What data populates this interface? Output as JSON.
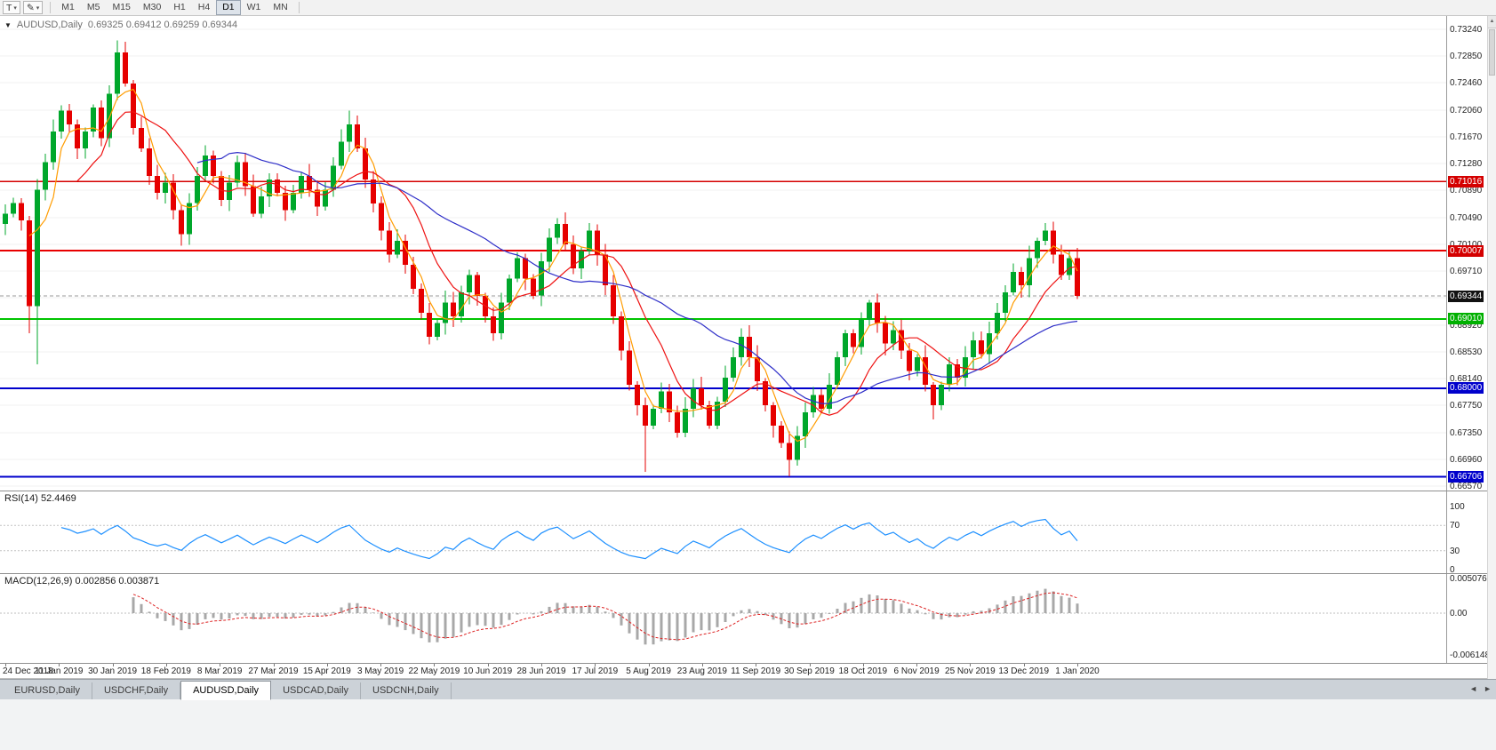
{
  "icons": {
    "caret": "▾",
    "collapse": "▼",
    "pencil": "✎",
    "scroll_up": "▲",
    "tab_left": "◄",
    "tab_right": "►"
  },
  "toolbar": {
    "t_label": "T",
    "timeframes": [
      "M1",
      "M5",
      "M15",
      "M30",
      "H1",
      "H4",
      "D1",
      "W1",
      "MN"
    ],
    "active_timeframe": "D1"
  },
  "chart": {
    "symbol": "AUDUSD,Daily",
    "ohlc": "0.69325 0.69412 0.69259 0.69344",
    "price_ticks": [
      "0.73240",
      "0.72850",
      "0.72460",
      "0.72060",
      "0.71670",
      "0.71280",
      "0.70890",
      "0.70490",
      "0.70100",
      "0.69710",
      "0.69320",
      "0.68920",
      "0.68530",
      "0.68140",
      "0.67750",
      "0.67350",
      "0.66960",
      "0.66570"
    ],
    "lines": [
      {
        "name": "resistance-upper",
        "price": 0.71016,
        "label": "0.71016",
        "color": "#d40000",
        "label_bg": "#d40000",
        "style": "solid",
        "width": 1.5
      },
      {
        "name": "resistance-lower",
        "price": 0.70007,
        "label": "0.70007",
        "color": "#e80000",
        "label_bg": "#d40000",
        "style": "solid",
        "width": 2
      },
      {
        "name": "current-price",
        "price": 0.69344,
        "label": "0.69344",
        "color": "#9a9a9a",
        "label_bg": "#111111",
        "style": "dashed",
        "width": 1
      },
      {
        "name": "support-green",
        "price": 0.6901,
        "label": "0.69010",
        "color": "#00c400",
        "label_bg": "#00b000",
        "style": "solid",
        "width": 2
      },
      {
        "name": "support-blue-upper",
        "price": 0.68,
        "label": "0.68000",
        "color": "#0000cc",
        "label_bg": "#0000cc",
        "style": "solid",
        "width": 2
      },
      {
        "name": "support-blue-lower",
        "price": 0.66706,
        "label": "0.66706",
        "color": "#0000cc",
        "label_bg": "#0000cc",
        "style": "solid",
        "width": 2
      }
    ]
  },
  "chart_data": {
    "type": "candlestick",
    "symbol": "AUDUSD",
    "timeframe": "Daily",
    "x_range": [
      "24 Dec 2018",
      "1 Jan 2020"
    ],
    "price_view": {
      "top": 0.73435,
      "bottom": 0.66505
    },
    "up_color": "#00a72b",
    "down_color": "#e60000",
    "candles": {
      "first_open": 0.704,
      "closes": [
        0.7055,
        0.707,
        0.7045,
        0.692,
        0.709,
        0.713,
        0.7175,
        0.7205,
        0.7185,
        0.715,
        0.7175,
        0.721,
        0.7165,
        0.723,
        0.729,
        0.7245,
        0.718,
        0.715,
        0.711,
        0.7085,
        0.71,
        0.706,
        0.7025,
        0.707,
        0.711,
        0.714,
        0.711,
        0.7075,
        0.71,
        0.713,
        0.7095,
        0.7055,
        0.708,
        0.7105,
        0.7085,
        0.706,
        0.7085,
        0.711,
        0.709,
        0.7065,
        0.709,
        0.7125,
        0.716,
        0.7185,
        0.715,
        0.7105,
        0.707,
        0.703,
        0.6995,
        0.7015,
        0.698,
        0.6945,
        0.691,
        0.6875,
        0.6895,
        0.6925,
        0.6905,
        0.694,
        0.6965,
        0.6935,
        0.6905,
        0.688,
        0.6925,
        0.696,
        0.699,
        0.696,
        0.6935,
        0.6985,
        0.702,
        0.704,
        0.701,
        0.6975,
        0.7,
        0.703,
        0.6995,
        0.695,
        0.6905,
        0.6855,
        0.6805,
        0.6775,
        0.6745,
        0.677,
        0.6795,
        0.6765,
        0.6735,
        0.677,
        0.68,
        0.6775,
        0.6745,
        0.678,
        0.6815,
        0.6845,
        0.6875,
        0.6845,
        0.681,
        0.6775,
        0.6745,
        0.672,
        0.6695,
        0.673,
        0.6765,
        0.679,
        0.677,
        0.6805,
        0.6845,
        0.688,
        0.686,
        0.69,
        0.6925,
        0.6895,
        0.6865,
        0.6885,
        0.6855,
        0.6825,
        0.6845,
        0.6805,
        0.6775,
        0.6805,
        0.6835,
        0.6815,
        0.6845,
        0.687,
        0.685,
        0.688,
        0.691,
        0.694,
        0.697,
        0.695,
        0.699,
        0.7015,
        0.703,
        0.6995,
        0.6965,
        0.699,
        0.69344
      ],
      "high_overrides": {
        "14": 0.7308,
        "43": 0.7205,
        "69": 0.7048,
        "108": 0.6929,
        "130": 0.7041
      },
      "low_overrides": {
        "3": 0.688,
        "4": 0.6835,
        "22": 0.7008,
        "53": 0.6864,
        "61": 0.6869,
        "80": 0.6678,
        "98": 0.6671,
        "116": 0.6754
      }
    },
    "moving_averages": [
      {
        "name": "fast-ma",
        "period": 4,
        "color": "#ff9c00"
      },
      {
        "name": "mid-ma",
        "period": 10,
        "color": "#ee1111"
      },
      {
        "name": "slow-ma",
        "period": 25,
        "color": "#2e2ec8"
      }
    ],
    "indicators": [
      {
        "name": "RSI",
        "params": "14",
        "last_value": 52.4469,
        "levels": [
          70,
          30
        ],
        "color": "#1e90ff"
      },
      {
        "name": "MACD",
        "params": "12,26,9",
        "values": [
          0.002856,
          0.003871
        ],
        "axis_max": 0.005076,
        "axis_min": -0.006148
      }
    ]
  },
  "rsi": {
    "label": "RSI(14) 52.4469",
    "ticks": [
      "100",
      "70",
      "30",
      "0"
    ]
  },
  "macd": {
    "label": "MACD(12,26,9) 0.002856 0.003871",
    "ticks": [
      "0.005076",
      "0.00",
      "-0.006148"
    ]
  },
  "date_axis": {
    "labels": [
      "24 Dec 2018",
      "11 Jan 2019",
      "30 Jan 2019",
      "18 Feb 2019",
      "8 Mar 2019",
      "27 Mar 2019",
      "15 Apr 2019",
      "3 May 2019",
      "22 May 2019",
      "10 Jun 2019",
      "28 Jun 2019",
      "17 Jul 2019",
      "5 Aug 2019",
      "23 Aug 2019",
      "11 Sep 2019",
      "30 Sep 2019",
      "18 Oct 2019",
      "6 Nov 2019",
      "25 Nov 2019",
      "13 Dec 2019",
      "1 Jan 2020"
    ]
  },
  "tabs": {
    "items": [
      "EURUSD,Daily",
      "USDCHF,Daily",
      "AUDUSD,Daily",
      "USDCAD,Daily",
      "USDCNH,Daily"
    ],
    "active": "AUDUSD,Daily"
  }
}
